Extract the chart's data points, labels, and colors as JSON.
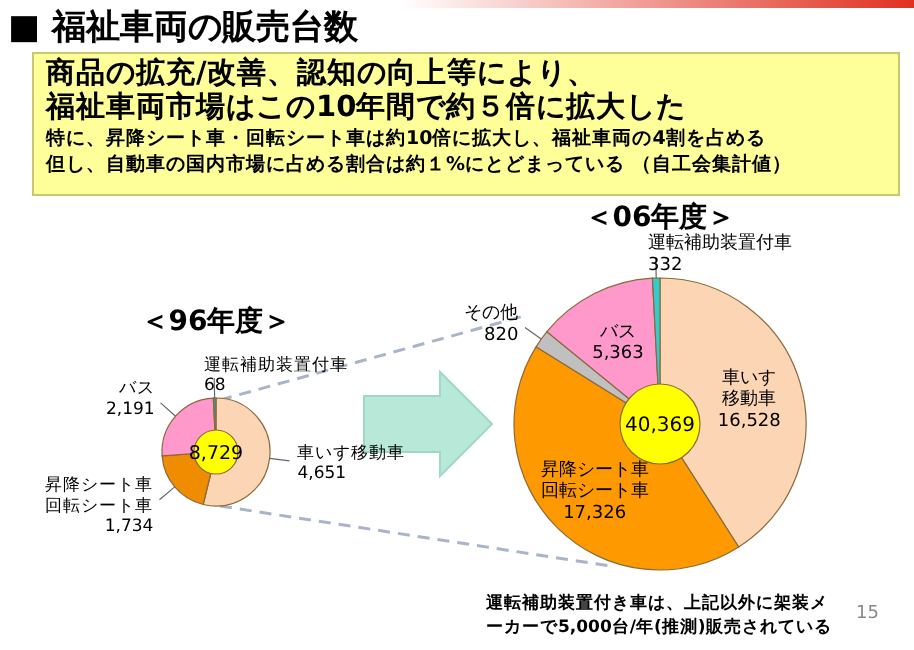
{
  "chart_data": [
    {
      "type": "other",
      "title": "■ 福祉車両の販売台数",
      "annotations": [
        "商品の拡充/改善、認知の向上等により、",
        "福祉車両市場はこの10年間で約５倍に拡大した",
        "特に、昇降シート車・回転シート車は約10倍に拡大し、福祉車両の4割を占める",
        "但し、自動車の国内市場に占める割合は約１%にとどまっている （自工会集計値）",
        "運転補助装置付き車は、上記以外に架装メーカーで5,000台/年(推測)販売されている",
        "15"
      ]
    },
    {
      "type": "donut",
      "title": "＜96年度＞",
      "categories": [
        "車いす移動車",
        "昇降シート車回転シート車",
        "バス",
        "運転補助装置付車"
      ],
      "values": [
        4651,
        1734,
        2191,
        68
      ],
      "value_labels": [
        "4,651",
        "1,734",
        "2,191",
        "68"
      ],
      "colors": [
        "#fcd5b4",
        "#f08c00",
        "#ff99cc",
        "#339999"
      ],
      "annotations": [
        "8,729"
      ]
    },
    {
      "type": "donut",
      "title": "＜06年度＞",
      "categories": [
        "車いす移動車",
        "昇降シート車回転シート車",
        "その他",
        "バス",
        "運転補助装置付車"
      ],
      "values": [
        16528,
        17326,
        820,
        5363,
        332
      ],
      "value_labels": [
        "16,528",
        "17,326",
        "820",
        "5,363",
        "332"
      ],
      "colors": [
        "#fcd5b4",
        "#ff9900",
        "#c0c0c0",
        "#ff99cc",
        "#33cccc"
      ],
      "annotations": [
        "40,369"
      ]
    }
  ]
}
